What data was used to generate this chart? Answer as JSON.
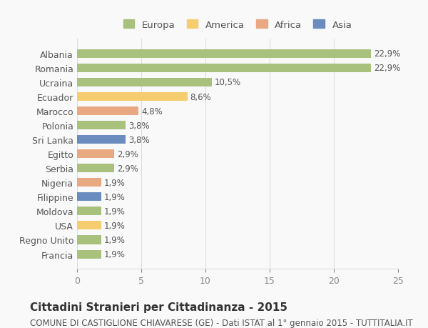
{
  "categories": [
    "Albania",
    "Romania",
    "Ucraina",
    "Ecuador",
    "Marocco",
    "Polonia",
    "Sri Lanka",
    "Egitto",
    "Serbia",
    "Nigeria",
    "Filippine",
    "Moldova",
    "USA",
    "Regno Unito",
    "Francia"
  ],
  "values": [
    22.9,
    22.9,
    10.5,
    8.6,
    4.8,
    3.8,
    3.8,
    2.9,
    2.9,
    1.9,
    1.9,
    1.9,
    1.9,
    1.9,
    1.9
  ],
  "labels": [
    "22,9%",
    "22,9%",
    "10,5%",
    "8,6%",
    "4,8%",
    "3,8%",
    "3,8%",
    "2,9%",
    "2,9%",
    "1,9%",
    "1,9%",
    "1,9%",
    "1,9%",
    "1,9%",
    "1,9%"
  ],
  "continents": [
    "Europa",
    "Europa",
    "Europa",
    "America",
    "Africa",
    "Europa",
    "Asia",
    "Africa",
    "Europa",
    "Africa",
    "Asia",
    "Europa",
    "America",
    "Europa",
    "Europa"
  ],
  "colors": {
    "Europa": "#a8c17c",
    "America": "#f5cc6e",
    "Africa": "#e8a882",
    "Asia": "#6b8cbf"
  },
  "legend_colors": {
    "Europa": "#a8c17c",
    "America": "#f5cc6e",
    "Africa": "#e8a882",
    "Asia": "#6b8cbf"
  },
  "xlim": [
    0,
    25
  ],
  "xticks": [
    0,
    5,
    10,
    15,
    20,
    25
  ],
  "title": "Cittadini Stranieri per Cittadinanza - 2015",
  "subtitle": "COMUNE DI CASTIGLIONE CHIAVARESE (GE) - Dati ISTAT al 1° gennaio 2015 - TUTTITALIA.IT",
  "background_color": "#f9f9f9",
  "grid_color": "#dddddd",
  "bar_height": 0.6,
  "label_fontsize": 8.5,
  "title_fontsize": 11,
  "subtitle_fontsize": 8.5
}
